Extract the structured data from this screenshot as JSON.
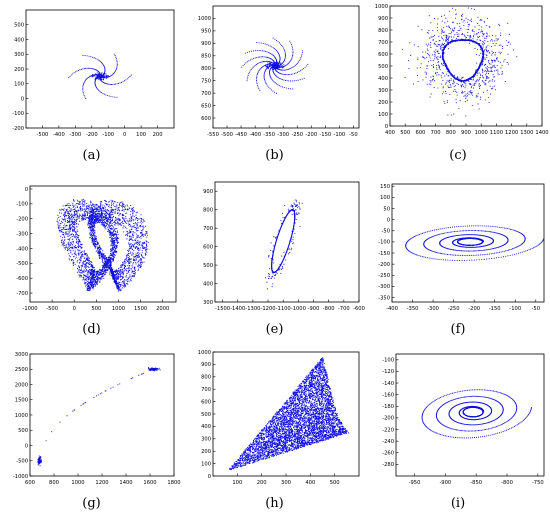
{
  "colors": {
    "points": "#1010e0",
    "axes": "#000000"
  },
  "chart_data": [
    {
      "caption": "(a)",
      "type": "scatter",
      "pattern": "spiral-arms",
      "xlim": [
        -600,
        300
      ],
      "ylim": [
        -200,
        600
      ],
      "xticks": [
        "-500",
        "-400",
        "-300",
        "-200",
        "-100",
        "0",
        "100",
        "200"
      ],
      "yticks": [
        "-200",
        "-100",
        "0",
        "100",
        "200",
        "300",
        "400",
        "500"
      ],
      "center": [
        -150,
        150
      ],
      "arms": 6,
      "radius": 320
    },
    {
      "caption": "(b)",
      "type": "scatter",
      "pattern": "spiral-arms",
      "xlim": [
        -550,
        -30
      ],
      "ylim": [
        560,
        1050
      ],
      "xticks": [
        "-550",
        "-500",
        "-450",
        "-400",
        "-350",
        "-300",
        "-250",
        "-200",
        "-150",
        "-100",
        "-50"
      ],
      "yticks": [
        "600",
        "650",
        "700",
        "750",
        "800",
        "850",
        "900",
        "950",
        "1000"
      ],
      "center": [
        -330,
        810
      ],
      "arms": 12,
      "radius": 210
    },
    {
      "caption": "(c)",
      "type": "scatter",
      "pattern": "limit-cycle",
      "xlim": [
        400,
        1400
      ],
      "ylim": [
        0,
        1000
      ],
      "xticks": [
        "400",
        "500",
        "600",
        "700",
        "800",
        "900",
        "1000",
        "1100",
        "1200",
        "1300",
        "1400"
      ],
      "yticks": [
        "0",
        "100",
        "200",
        "300",
        "400",
        "500",
        "600",
        "700",
        "800",
        "900",
        "1000"
      ],
      "center": [
        880,
        560
      ],
      "rx": 130,
      "ry": 170,
      "spread": 450
    },
    {
      "caption": "(d)",
      "type": "scatter",
      "pattern": "butterfly-attractor",
      "xlim": [
        -1000,
        2300
      ],
      "ylim": [
        -760,
        20
      ],
      "xticks": [
        "-1000",
        "-500",
        "0",
        "500",
        "1000",
        "1500",
        "2000"
      ],
      "yticks": [
        "-700",
        "-600",
        "-500",
        "-400",
        "-300",
        "-200",
        "-100",
        "0"
      ],
      "center": [
        650,
        -380
      ]
    },
    {
      "caption": "(e)",
      "type": "scatter",
      "pattern": "tilted-ellipse",
      "xlim": [
        -1550,
        -600
      ],
      "ylim": [
        300,
        950
      ],
      "xticks": [
        "-1500",
        "-1400",
        "-1300",
        "-1200",
        "-1100",
        "-1000",
        "-900",
        "-800",
        "-700",
        "-600"
      ],
      "yticks": [
        "300",
        "400",
        "500",
        "600",
        "700",
        "800",
        "900"
      ],
      "center": [
        -1100,
        630
      ]
    },
    {
      "caption": "(f)",
      "type": "scatter",
      "pattern": "flat-spiral",
      "xlim": [
        -400,
        -30
      ],
      "ylim": [
        -370,
        160
      ],
      "xticks": [
        "-400",
        "-350",
        "-300",
        "-250",
        "-200",
        "-150",
        "-100",
        "-50"
      ],
      "yticks": [
        "-350",
        "-300",
        "-250",
        "-200",
        "-150",
        "-100",
        "-50",
        "0",
        "50",
        "100",
        "150"
      ],
      "center": [
        -210,
        -100
      ],
      "rx": 180,
      "ry": 90
    },
    {
      "caption": "(g)",
      "type": "scatter",
      "pattern": "two-clusters",
      "xlim": [
        600,
        1800
      ],
      "ylim": [
        -1000,
        3000
      ],
      "xticks": [
        "600",
        "800",
        "1000",
        "1200",
        "1400",
        "1600",
        "1800"
      ],
      "yticks": [
        "-1000",
        "-500",
        "0",
        "500",
        "1000",
        "1500",
        "2000",
        "2500",
        "3000"
      ],
      "cluster1": [
        680,
        -500
      ],
      "cluster2": [
        1630,
        2500
      ]
    },
    {
      "caption": "(h)",
      "type": "scatter",
      "pattern": "chaotic-wedge",
      "xlim": [
        0,
        600
      ],
      "ylim": [
        0,
        1000
      ],
      "xticks": [
        "100",
        "200",
        "300",
        "400",
        "500"
      ],
      "yticks": [
        "0",
        "100",
        "200",
        "300",
        "400",
        "500",
        "600",
        "700",
        "800",
        "900",
        "1000"
      ],
      "vertices": [
        [
          60,
          40
        ],
        [
          450,
          960
        ],
        [
          560,
          350
        ]
      ]
    },
    {
      "caption": "(i)",
      "type": "scatter",
      "pattern": "flat-spiral",
      "xlim": [
        -980,
        -740
      ],
      "ylim": [
        -300,
        -90
      ],
      "xticks": [
        "-950",
        "-900",
        "-850",
        "-800",
        "-750"
      ],
      "yticks": [
        "-280",
        "-260",
        "-240",
        "-220",
        "-200",
        "-180",
        "-160",
        "-140",
        "-120",
        "-100"
      ],
      "center": [
        -855,
        -190
      ],
      "rx": 95,
      "ry": 48
    }
  ]
}
